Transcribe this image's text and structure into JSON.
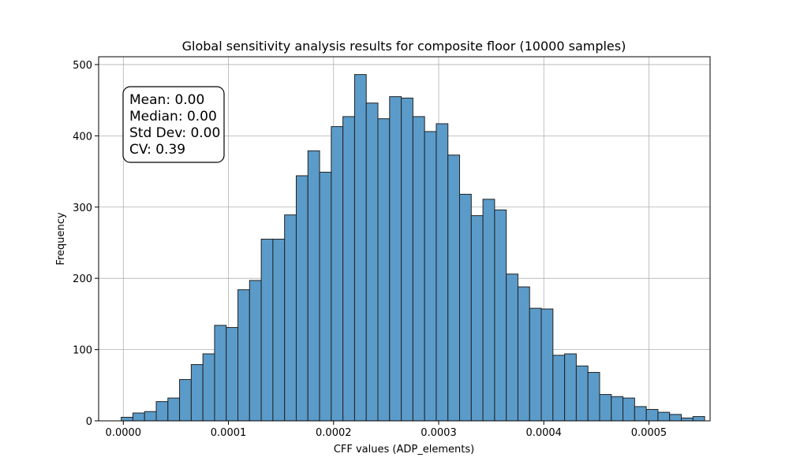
{
  "chart_data": {
    "type": "bar",
    "title": "Global sensitivity analysis results for composite floor (10000 samples)",
    "xlabel": "CFF values (ADP_elements)",
    "ylabel": "Frequency",
    "xlim": [
      -2.35e-05,
      0.0005582
    ],
    "ylim": [
      0,
      511
    ],
    "xticks": [
      0.0,
      0.0001,
      0.0002,
      0.0003,
      0.0004,
      0.0005
    ],
    "xtick_labels": [
      "0.0000",
      "0.0001",
      "0.0002",
      "0.0003",
      "0.0004",
      "0.0005"
    ],
    "yticks": [
      0,
      100,
      200,
      300,
      400,
      500
    ],
    "ytick_labels": [
      "0",
      "100",
      "200",
      "300",
      "400",
      "500"
    ],
    "grid": true,
    "bin_start": -2e-06,
    "bin_width": 1.11e-05,
    "frequencies": [
      5,
      11,
      13,
      27,
      32,
      58,
      79,
      94,
      134,
      131,
      184,
      197,
      255,
      255,
      289,
      344,
      379,
      349,
      413,
      427,
      486,
      446,
      424,
      455,
      453,
      427,
      406,
      417,
      373,
      318,
      288,
      311,
      296,
      206,
      188,
      158,
      157,
      92,
      94,
      77,
      68,
      37,
      34,
      32,
      20,
      16,
      12,
      9,
      4,
      6
    ],
    "bar_color": "#5b9bc9",
    "stats_box_lines": [
      "Mean: 0.00",
      "Median: 0.00",
      "Std Dev: 0.00",
      "CV: 0.39"
    ],
    "stats_box_position": "top-left"
  }
}
